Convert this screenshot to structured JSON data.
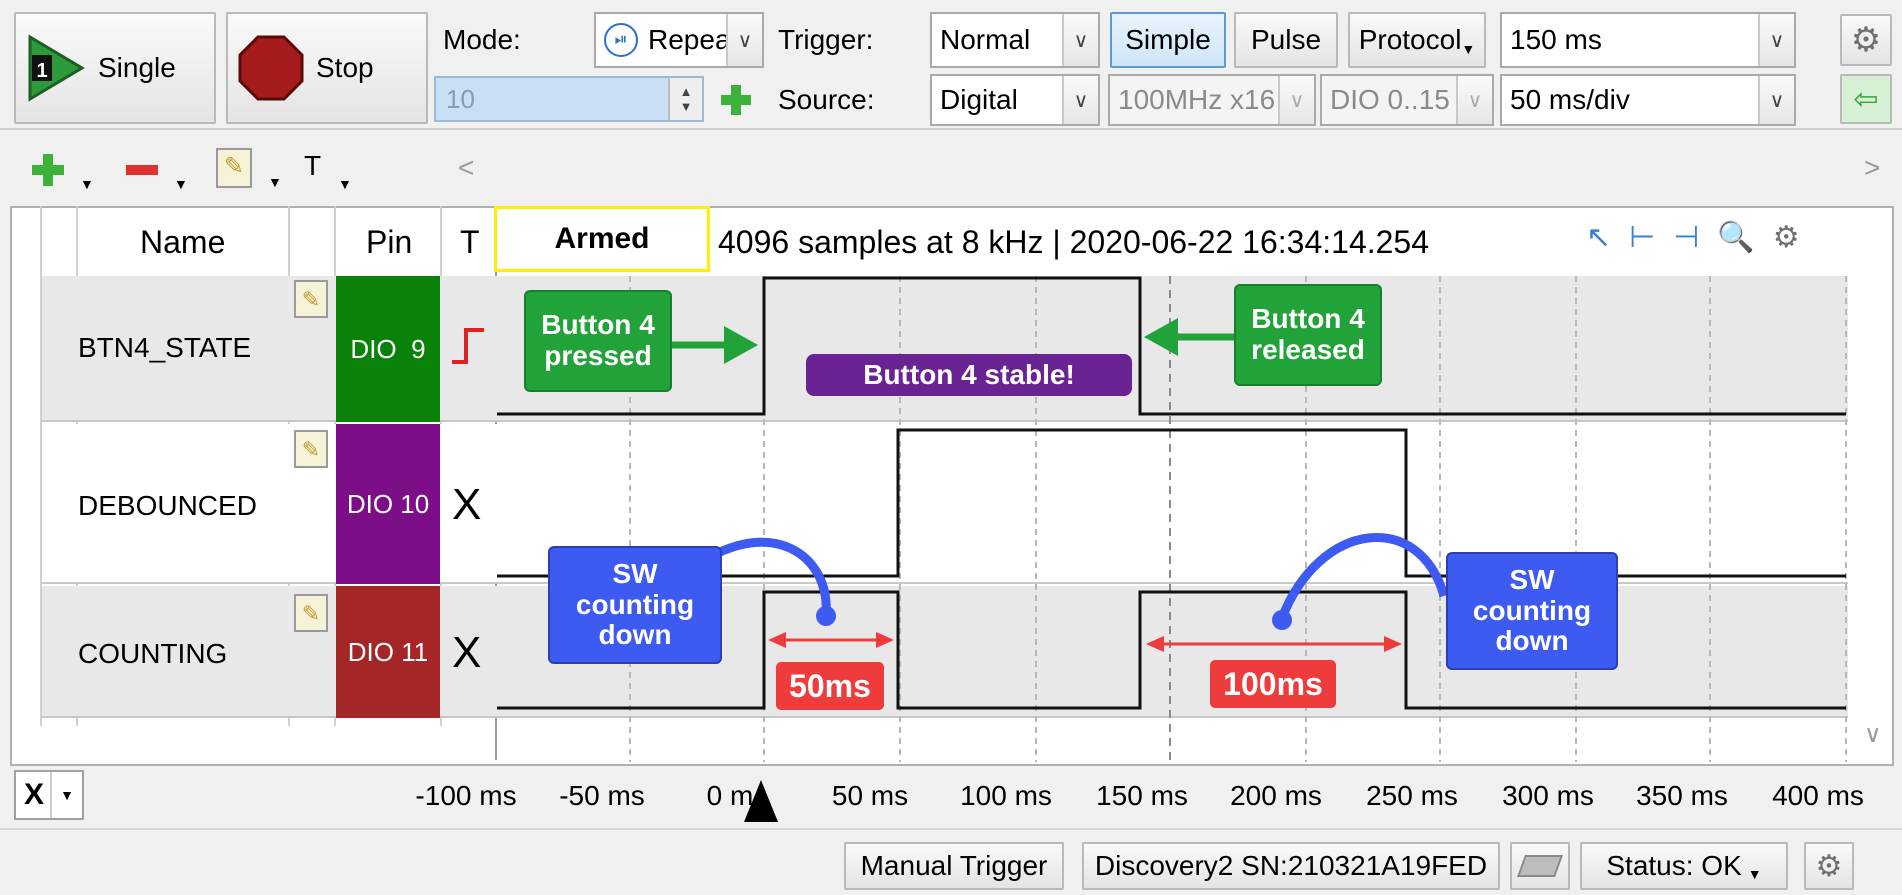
{
  "toolbar": {
    "single_label": "Single",
    "stop_label": "Stop",
    "mode_label": "Mode:",
    "mode_value": "Repea",
    "count_value": "10",
    "trigger_label": "Trigger:",
    "trigger_value": "Normal",
    "simple_label": "Simple",
    "pulse_label": "Pulse",
    "protocol_label": "Protocol",
    "time_value": "150 ms",
    "source_label": "Source:",
    "source_value": "Digital",
    "rate_value": "100MHz x16",
    "dio_value": "DIO 0..15",
    "div_value": "50 ms/div"
  },
  "table": {
    "col_name": "Name",
    "col_pin": "Pin",
    "col_t": "T",
    "armed": "Armed",
    "info": "4096 samples at 8 kHz | 2020-06-22 16:34:14.254",
    "rows": [
      {
        "name": "BTN4_STATE",
        "pin": "DIO  9",
        "color": "#0a820a"
      },
      {
        "name": "DEBOUNCED",
        "pin": "DIO 10",
        "color": "#7c0e88"
      },
      {
        "name": "COUNTING",
        "pin": "DIO 11",
        "color": "#a52626"
      }
    ],
    "t_counting": "X",
    "t_debounced": "X"
  },
  "annotations": {
    "pressed": "Button 4 pressed",
    "released": "Button 4 released",
    "stable": "Button 4 stable!",
    "sw1": "SW counting down",
    "sw2": "SW counting down",
    "ms50": "50ms",
    "ms100": "100ms"
  },
  "axis": {
    "selector": "X",
    "ticks": [
      "-100 ms",
      "-50 ms",
      "0 m",
      "50 ms",
      "100 ms",
      "150 ms",
      "200 ms",
      "250 ms",
      "300 ms",
      "350 ms",
      "400 ms"
    ]
  },
  "status": {
    "manual_trigger": "Manual Trigger",
    "device": "Discovery2 SN:210321A19FED",
    "status": "Status: OK"
  },
  "colors": {
    "callout_green": "#22a33a",
    "callout_purple": "#6a2393",
    "callout_blue": "#3d5af1",
    "ms_red": "#ee3b3b",
    "armed_border": "#ffee00"
  }
}
